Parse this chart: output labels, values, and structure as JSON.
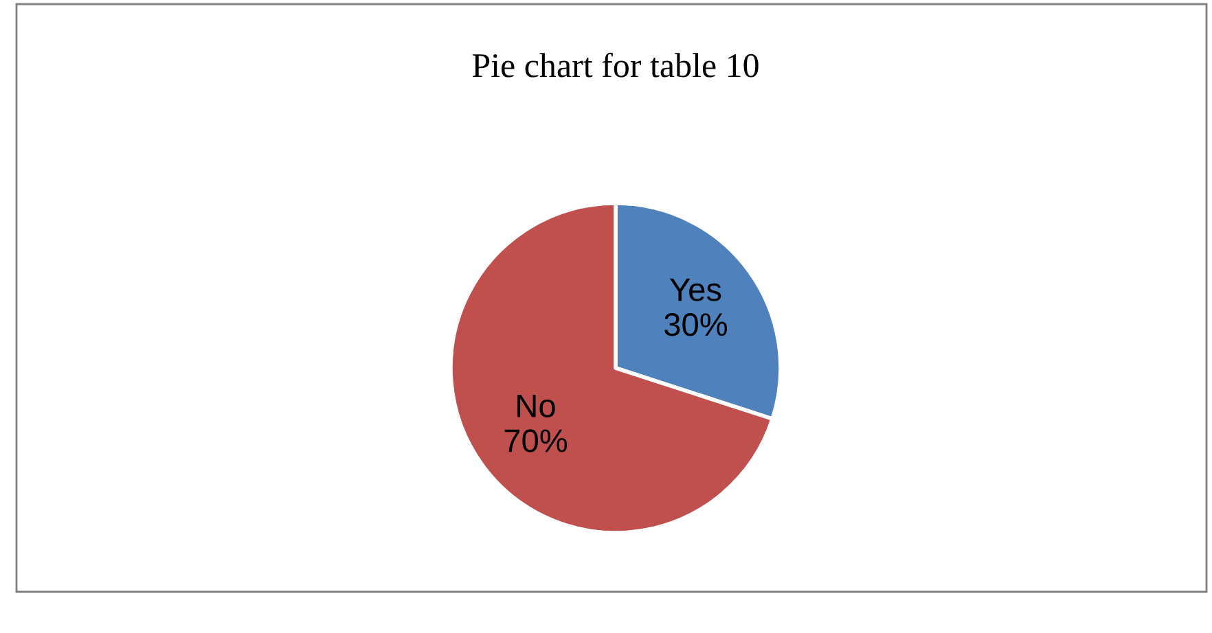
{
  "chart_data": {
    "type": "pie",
    "title": "Pie chart for table 10",
    "categories": [
      "Yes",
      "No"
    ],
    "values": [
      30,
      70
    ],
    "colors": [
      "#4f81bd",
      "#c0504d"
    ],
    "value_labels": [
      "30%",
      "70%"
    ],
    "legend": false
  }
}
